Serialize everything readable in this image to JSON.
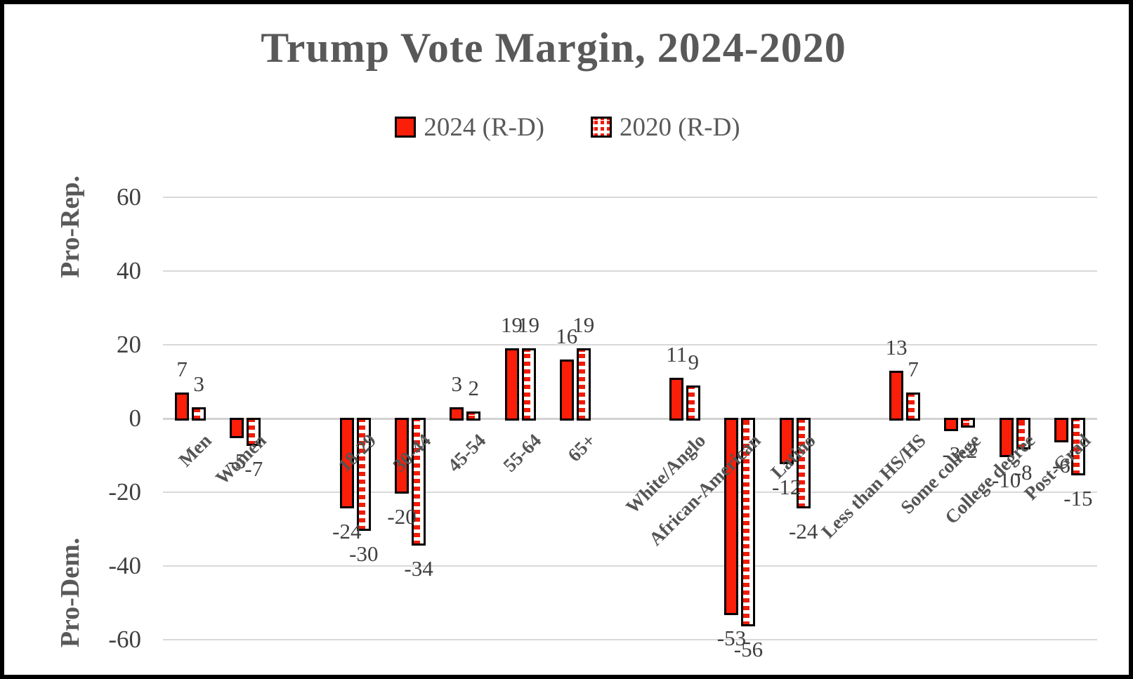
{
  "title": "Trump Vote Margin, 2024-2020",
  "legend": {
    "items": [
      {
        "label": "2024 (R-D)",
        "style": "solid"
      },
      {
        "label": "2020 (R-D)",
        "style": "dotted"
      }
    ]
  },
  "y_axis": {
    "pro_rep_label": "Pro-Rep.",
    "pro_dem_label": "Pro-Dem.",
    "tick_labels": [
      "60",
      "40",
      "20",
      "0",
      "-20",
      "-40",
      "-60"
    ]
  },
  "chart_data": {
    "type": "bar",
    "title": "Trump Vote Margin, 2024-2020",
    "categories": [
      "Men",
      "Women",
      "18-29",
      "30-44",
      "45-54",
      "55-64",
      "65+",
      "White/Anglo",
      "African-American",
      "Latino",
      "Less than HS/HS",
      "Some college",
      "College degree",
      "Post-Grad"
    ],
    "category_slots": [
      0,
      1,
      3,
      4,
      5,
      6,
      7,
      9,
      10,
      11,
      13,
      14,
      15,
      16
    ],
    "total_slots": 17,
    "series": [
      {
        "name": "2024 (R-D)",
        "pattern": "solid",
        "values": [
          7,
          -5,
          -24,
          -20,
          3,
          19,
          16,
          11,
          -53,
          -12,
          13,
          -3,
          -10,
          -6
        ]
      },
      {
        "name": "2020 (R-D)",
        "pattern": "dotted",
        "values": [
          3,
          -7,
          -30,
          -34,
          2,
          19,
          19,
          9,
          -56,
          -24,
          7,
          -2,
          -8,
          -15
        ]
      }
    ],
    "yticks": [
      60,
      40,
      20,
      0,
      -20,
      -40,
      -60
    ],
    "ylim": [
      -65,
      65
    ],
    "grid": true,
    "legend_position": "top",
    "data_labels": "outside-end",
    "ylabel_top": "Pro-Rep.",
    "ylabel_bottom": "Pro-Dem."
  },
  "colors": {
    "bar_red": "#FB1E09",
    "bar_border": "#000000",
    "gridline": "#D9D9D9",
    "value_text": "#3F3F3F",
    "heading_text": "#595959",
    "background": "#FFFFFF",
    "frame_border": "#000000"
  }
}
